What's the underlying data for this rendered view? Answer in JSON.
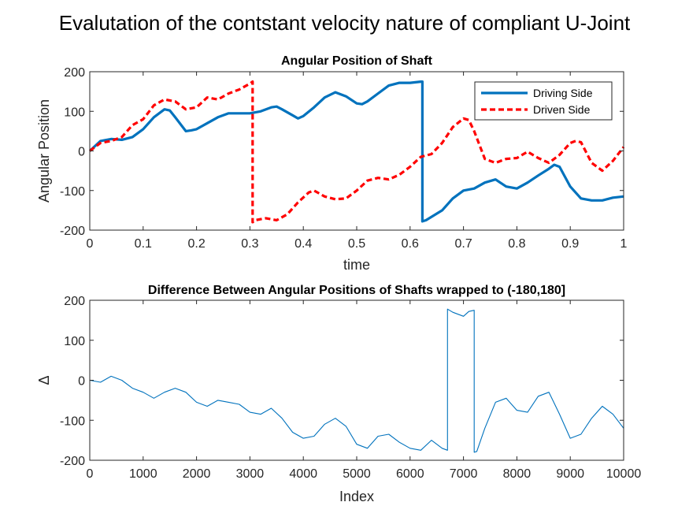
{
  "figure_title": "Evalutation of the contstant velocity nature of compliant U-Joint",
  "chart_data": [
    {
      "type": "line",
      "title": "Angular Position of Shaft",
      "xlabel": "time",
      "ylabel": "Angular Position",
      "xlim": [
        0,
        1
      ],
      "ylim": [
        -200,
        200
      ],
      "xticks": [
        0,
        0.1,
        0.2,
        0.3,
        0.4,
        0.5,
        0.6,
        0.7,
        0.8,
        0.9,
        1
      ],
      "xtick_labels": [
        "0",
        "0.1",
        "0.2",
        "0.3",
        "0.4",
        "0.5",
        "0.6",
        "0.7",
        "0.8",
        "0.9",
        "1"
      ],
      "yticks": [
        -200,
        -100,
        0,
        100,
        200
      ],
      "ytick_labels": [
        "-200",
        "-100",
        "0",
        "100",
        "200"
      ],
      "grid": false,
      "legend_position": "top-right",
      "series": [
        {
          "name": "Driving Side",
          "color": "#0072BD",
          "style": "solid",
          "x": [
            0,
            0.02,
            0.04,
            0.06,
            0.08,
            0.1,
            0.12,
            0.14,
            0.15,
            0.16,
            0.18,
            0.19,
            0.2,
            0.22,
            0.24,
            0.26,
            0.28,
            0.3,
            0.32,
            0.34,
            0.35,
            0.36,
            0.38,
            0.39,
            0.4,
            0.42,
            0.44,
            0.46,
            0.48,
            0.5,
            0.51,
            0.52,
            0.54,
            0.56,
            0.58,
            0.6,
            0.62,
            0.623,
            0.623,
            0.63,
            0.66,
            0.68,
            0.7,
            0.72,
            0.74,
            0.76,
            0.78,
            0.8,
            0.82,
            0.84,
            0.86,
            0.87,
            0.88,
            0.9,
            0.92,
            0.94,
            0.96,
            0.98,
            1.0
          ],
          "y": [
            0,
            25,
            30,
            28,
            35,
            55,
            85,
            105,
            102,
            85,
            50,
            52,
            55,
            70,
            85,
            95,
            95,
            95,
            100,
            110,
            112,
            105,
            90,
            82,
            88,
            110,
            135,
            148,
            138,
            120,
            118,
            125,
            145,
            165,
            172,
            172,
            175,
            175,
            -178,
            -175,
            -150,
            -120,
            -100,
            -95,
            -80,
            -72,
            -90,
            -95,
            -80,
            -62,
            -45,
            -35,
            -40,
            -90,
            -120,
            -125,
            -125,
            -118,
            -115
          ]
        },
        {
          "name": "Driven Side",
          "color": "#FF0000",
          "style": "dashed",
          "x": [
            0,
            0.02,
            0.04,
            0.06,
            0.08,
            0.1,
            0.12,
            0.14,
            0.16,
            0.18,
            0.2,
            0.22,
            0.24,
            0.26,
            0.28,
            0.3,
            0.305,
            0.305,
            0.31,
            0.33,
            0.35,
            0.37,
            0.39,
            0.41,
            0.42,
            0.44,
            0.46,
            0.48,
            0.5,
            0.52,
            0.54,
            0.56,
            0.58,
            0.6,
            0.62,
            0.64,
            0.66,
            0.68,
            0.7,
            0.71,
            0.72,
            0.74,
            0.76,
            0.78,
            0.8,
            0.82,
            0.84,
            0.86,
            0.88,
            0.9,
            0.91,
            0.92,
            0.94,
            0.96,
            0.98,
            1.0
          ],
          "y": [
            0,
            20,
            25,
            35,
            65,
            80,
            115,
            130,
            125,
            105,
            110,
            135,
            130,
            145,
            155,
            170,
            175,
            -180,
            -175,
            -170,
            -175,
            -160,
            -130,
            -105,
            -100,
            -115,
            -122,
            -120,
            -100,
            -75,
            -68,
            -72,
            -60,
            -40,
            -15,
            -8,
            20,
            60,
            82,
            78,
            50,
            -20,
            -30,
            -20,
            -18,
            -2,
            -18,
            -30,
            -10,
            20,
            25,
            22,
            -30,
            -50,
            -25,
            10
          ]
        }
      ]
    },
    {
      "type": "line",
      "title": "Difference Between Angular Positions of Shafts wrapped to (-180,180]",
      "xlabel": "Index",
      "ylabel": "Δ",
      "xlim": [
        0,
        10000
      ],
      "ylim": [
        -200,
        200
      ],
      "xticks": [
        0,
        1000,
        2000,
        3000,
        4000,
        5000,
        6000,
        7000,
        8000,
        9000,
        10000
      ],
      "xtick_labels": [
        "0",
        "1000",
        "2000",
        "3000",
        "4000",
        "5000",
        "6000",
        "7000",
        "8000",
        "9000",
        "10000"
      ],
      "yticks": [
        -200,
        -100,
        0,
        100,
        200
      ],
      "ytick_labels": [
        "-200",
        "-100",
        "0",
        "100",
        "200"
      ],
      "grid": false,
      "series": [
        {
          "color": "#0072BD",
          "style": "solid",
          "x": [
            0,
            200,
            400,
            600,
            800,
            1000,
            1200,
            1400,
            1600,
            1800,
            2000,
            2200,
            2400,
            2600,
            2800,
            3000,
            3200,
            3400,
            3600,
            3800,
            4000,
            4200,
            4400,
            4600,
            4800,
            5000,
            5200,
            5400,
            5600,
            5800,
            6000,
            6200,
            6400,
            6600,
            6700,
            6700,
            6800,
            7000,
            7100,
            7200,
            7200,
            7250,
            7400,
            7600,
            7800,
            8000,
            8200,
            8400,
            8600,
            8800,
            9000,
            9200,
            9400,
            9600,
            9800,
            10000
          ],
          "y": [
            0,
            -5,
            10,
            0,
            -20,
            -30,
            -45,
            -30,
            -20,
            -30,
            -55,
            -65,
            -50,
            -55,
            -60,
            -80,
            -85,
            -70,
            -95,
            -130,
            -145,
            -140,
            -110,
            -95,
            -115,
            -160,
            -170,
            -140,
            -135,
            -155,
            -170,
            -175,
            -150,
            -170,
            -175,
            178,
            170,
            160,
            172,
            175,
            -180,
            -178,
            -120,
            -55,
            -45,
            -75,
            -80,
            -40,
            -30,
            -85,
            -145,
            -135,
            -95,
            -65,
            -85,
            -120
          ]
        }
      ]
    }
  ]
}
